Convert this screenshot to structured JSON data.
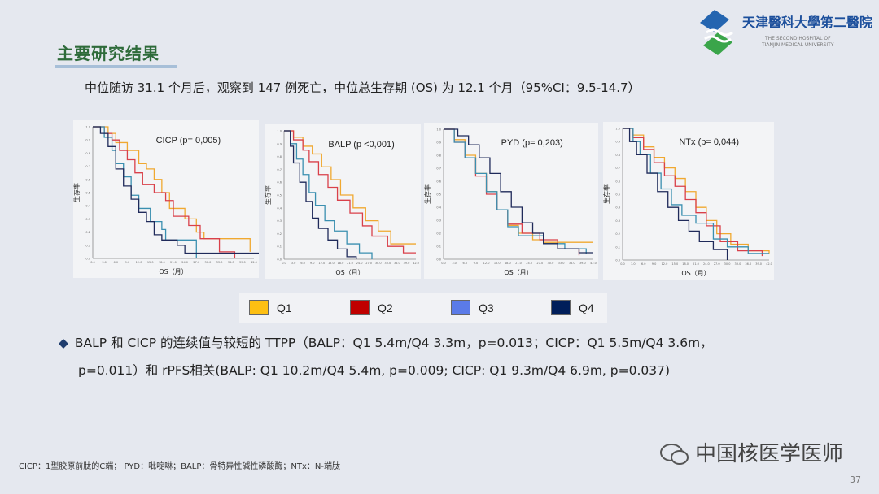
{
  "header": {
    "title": "主要研究结果",
    "logo_cn": "天津醫科大學第二醫院",
    "logo_en_1": "THE SECOND HOSPITAL OF",
    "logo_en_2": "TIANJIN MEDICAL UNIVERSITY"
  },
  "summary": "中位随访 31.1 个月后，观察到 147 例死亡，中位总生存期 (OS) 为 12.1 个月（95%CI：9.5-14.7）",
  "colors": {
    "Q1": "#f0a830",
    "Q2": "#d9404a",
    "Q3": "#3a8fb0",
    "Q4": "#1f2a5a"
  },
  "legend": [
    {
      "label": "Q1",
      "color": "#fdbf12"
    },
    {
      "label": "Q2",
      "color": "#c00000"
    },
    {
      "label": "Q3",
      "color": "#5b7be8"
    },
    {
      "label": "Q4",
      "color": "#001e5a"
    }
  ],
  "chart_data": [
    {
      "type": "line",
      "title": "CICP (p= 0,005)",
      "xlabel": "OS（月）",
      "ylabel": "生存率",
      "xlim": [
        0,
        42
      ],
      "ylim": [
        0,
        1
      ],
      "series": [
        {
          "name": "Q1",
          "points": [
            [
              0,
              1
            ],
            [
              4,
              0.95
            ],
            [
              6,
              0.88
            ],
            [
              9,
              0.82
            ],
            [
              12,
              0.72
            ],
            [
              14,
              0.68
            ],
            [
              16,
              0.6
            ],
            [
              18,
              0.5
            ],
            [
              20,
              0.38
            ],
            [
              24,
              0.3
            ],
            [
              27,
              0.2
            ],
            [
              29,
              0.15
            ],
            [
              41,
              0.05
            ]
          ]
        },
        {
          "name": "Q2",
          "points": [
            [
              0,
              1
            ],
            [
              3,
              0.95
            ],
            [
              5,
              0.9
            ],
            [
              7,
              0.82
            ],
            [
              9,
              0.75
            ],
            [
              11,
              0.65
            ],
            [
              13,
              0.56
            ],
            [
              16,
              0.5
            ],
            [
              19,
              0.44
            ],
            [
              21,
              0.32
            ],
            [
              25,
              0.25
            ],
            [
              28,
              0.15
            ],
            [
              33,
              0.05
            ],
            [
              37,
              0.0
            ]
          ]
        },
        {
          "name": "Q3",
          "points": [
            [
              0,
              1
            ],
            [
              3,
              0.92
            ],
            [
              5,
              0.82
            ],
            [
              6,
              0.72
            ],
            [
              8,
              0.62
            ],
            [
              10,
              0.48
            ],
            [
              12,
              0.38
            ],
            [
              15,
              0.28
            ],
            [
              18,
              0.22
            ],
            [
              19,
              0.14
            ],
            [
              27,
              0.0
            ]
          ]
        },
        {
          "name": "Q4",
          "points": [
            [
              0,
              1
            ],
            [
              2,
              0.95
            ],
            [
              4,
              0.85
            ],
            [
              6,
              0.68
            ],
            [
              8,
              0.55
            ],
            [
              10,
              0.45
            ],
            [
              12,
              0.35
            ],
            [
              14,
              0.28
            ],
            [
              16,
              0.18
            ],
            [
              18,
              0.14
            ],
            [
              22,
              0.1
            ],
            [
              24,
              0.04
            ],
            [
              44,
              0.04
            ]
          ]
        }
      ]
    },
    {
      "type": "line",
      "title": "BALP (p <0,001)",
      "xlabel": "OS（月）",
      "ylabel": "生存率",
      "xlim": [
        0,
        42
      ],
      "ylim": [
        0,
        1
      ],
      "series": [
        {
          "name": "Q1",
          "points": [
            [
              0,
              1
            ],
            [
              3,
              0.95
            ],
            [
              6,
              0.88
            ],
            [
              9,
              0.82
            ],
            [
              12,
              0.72
            ],
            [
              15,
              0.62
            ],
            [
              18,
              0.5
            ],
            [
              22,
              0.4
            ],
            [
              26,
              0.3
            ],
            [
              30,
              0.22
            ],
            [
              34,
              0.12
            ],
            [
              42,
              0.12
            ]
          ]
        },
        {
          "name": "Q2",
          "points": [
            [
              0,
              1
            ],
            [
              3,
              0.93
            ],
            [
              6,
              0.85
            ],
            [
              8,
              0.76
            ],
            [
              11,
              0.66
            ],
            [
              14,
              0.56
            ],
            [
              17,
              0.46
            ],
            [
              21,
              0.36
            ],
            [
              25,
              0.26
            ],
            [
              28,
              0.18
            ],
            [
              33,
              0.1
            ],
            [
              38,
              0.05
            ],
            [
              42,
              0.05
            ]
          ]
        },
        {
          "name": "Q3",
          "points": [
            [
              0,
              1
            ],
            [
              2,
              0.9
            ],
            [
              4,
              0.78
            ],
            [
              6,
              0.66
            ],
            [
              8,
              0.52
            ],
            [
              10,
              0.42
            ],
            [
              13,
              0.3
            ],
            [
              16,
              0.22
            ],
            [
              20,
              0.12
            ],
            [
              24,
              0.05
            ],
            [
              28,
              0.0
            ]
          ]
        },
        {
          "name": "Q4",
          "points": [
            [
              0,
              1
            ],
            [
              2,
              0.88
            ],
            [
              3,
              0.75
            ],
            [
              5,
              0.6
            ],
            [
              7,
              0.45
            ],
            [
              9,
              0.32
            ],
            [
              11,
              0.24
            ],
            [
              14,
              0.15
            ],
            [
              17,
              0.08
            ],
            [
              20,
              0.02
            ],
            [
              23,
              0.0
            ]
          ]
        }
      ]
    },
    {
      "type": "line",
      "title": "PYD (p= 0,203)",
      "xlabel": "OS（月）",
      "ylabel": "生存率",
      "xlim": [
        0,
        42
      ],
      "ylim": [
        0,
        1
      ],
      "series": [
        {
          "name": "Q1",
          "points": [
            [
              0,
              1
            ],
            [
              3,
              0.92
            ],
            [
              6,
              0.8
            ],
            [
              9,
              0.66
            ],
            [
              12,
              0.52
            ],
            [
              15,
              0.38
            ],
            [
              18,
              0.26
            ],
            [
              21,
              0.2
            ],
            [
              25,
              0.15
            ],
            [
              28,
              0.13
            ],
            [
              42,
              0.13
            ]
          ]
        },
        {
          "name": "Q2",
          "points": [
            [
              0,
              1
            ],
            [
              3,
              0.9
            ],
            [
              6,
              0.78
            ],
            [
              9,
              0.64
            ],
            [
              12,
              0.5
            ],
            [
              15,
              0.38
            ],
            [
              18,
              0.27
            ],
            [
              22,
              0.2
            ],
            [
              27,
              0.15
            ],
            [
              32,
              0.08
            ],
            [
              38,
              0.03
            ]
          ]
        },
        {
          "name": "Q3",
          "points": [
            [
              0,
              1
            ],
            [
              3,
              0.9
            ],
            [
              6,
              0.78
            ],
            [
              9,
              0.66
            ],
            [
              12,
              0.52
            ],
            [
              15,
              0.38
            ],
            [
              18,
              0.25
            ],
            [
              21,
              0.18
            ],
            [
              28,
              0.12
            ],
            [
              34,
              0.08
            ],
            [
              40,
              0.04
            ]
          ]
        },
        {
          "name": "Q4",
          "points": [
            [
              0,
              1
            ],
            [
              4,
              0.95
            ],
            [
              7,
              0.88
            ],
            [
              10,
              0.78
            ],
            [
              13,
              0.66
            ],
            [
              16,
              0.52
            ],
            [
              19,
              0.4
            ],
            [
              22,
              0.28
            ],
            [
              25,
              0.2
            ],
            [
              28,
              0.12
            ],
            [
              32,
              0.08
            ],
            [
              38,
              0.05
            ],
            [
              42,
              0.05
            ]
          ]
        }
      ]
    },
    {
      "type": "line",
      "title": "NTx (p= 0,044)",
      "xlabel": "OS（月）",
      "ylabel": "生存率",
      "xlim": [
        0,
        42
      ],
      "ylim": [
        0,
        1
      ],
      "series": [
        {
          "name": "Q1",
          "points": [
            [
              0,
              1
            ],
            [
              3,
              0.95
            ],
            [
              6,
              0.86
            ],
            [
              9,
              0.78
            ],
            [
              12,
              0.7
            ],
            [
              15,
              0.62
            ],
            [
              18,
              0.52
            ],
            [
              21,
              0.4
            ],
            [
              24,
              0.3
            ],
            [
              27,
              0.2
            ],
            [
              31,
              0.12
            ],
            [
              36,
              0.07
            ],
            [
              42,
              0.05
            ]
          ]
        },
        {
          "name": "Q2",
          "points": [
            [
              0,
              1
            ],
            [
              3,
              0.93
            ],
            [
              6,
              0.84
            ],
            [
              9,
              0.74
            ],
            [
              12,
              0.64
            ],
            [
              15,
              0.56
            ],
            [
              18,
              0.46
            ],
            [
              21,
              0.36
            ],
            [
              24,
              0.26
            ],
            [
              28,
              0.14
            ],
            [
              33,
              0.07
            ],
            [
              40,
              0.03
            ]
          ]
        },
        {
          "name": "Q3",
          "points": [
            [
              0,
              1
            ],
            [
              3,
              0.9
            ],
            [
              5,
              0.8
            ],
            [
              8,
              0.66
            ],
            [
              11,
              0.54
            ],
            [
              14,
              0.42
            ],
            [
              17,
              0.34
            ],
            [
              21,
              0.28
            ],
            [
              26,
              0.16
            ],
            [
              30,
              0.1
            ],
            [
              36,
              0.05
            ],
            [
              42,
              0.05
            ]
          ]
        },
        {
          "name": "Q4",
          "points": [
            [
              0,
              1
            ],
            [
              2,
              0.9
            ],
            [
              4,
              0.8
            ],
            [
              7,
              0.66
            ],
            [
              10,
              0.52
            ],
            [
              13,
              0.4
            ],
            [
              16,
              0.3
            ],
            [
              19,
              0.22
            ],
            [
              22,
              0.14
            ],
            [
              26,
              0.08
            ],
            [
              30,
              0.0
            ]
          ]
        }
      ]
    }
  ],
  "bullet_line1": "BALP 和 CICP 的连续值与较短的 TTPP（BALP：Q1 5.4m/Q4 3.3m，p=0.013；CICP：Q1 5.5m/Q4 3.6m，",
  "bullet_line2": "p=0.011）和 rPFS相关(BALP: Q1 10.2m/Q4 5.4m, p=0.009; CICP: Q1 9.3m/Q4 6.9m, p=0.037)",
  "footnote": "CICP：1型胶原前肽的C端；  PYD：吡啶啉；BALP：骨特异性碱性磷酸酶；NTx：N-端肽",
  "watermark": "中国核医学医师",
  "page_number": "37"
}
